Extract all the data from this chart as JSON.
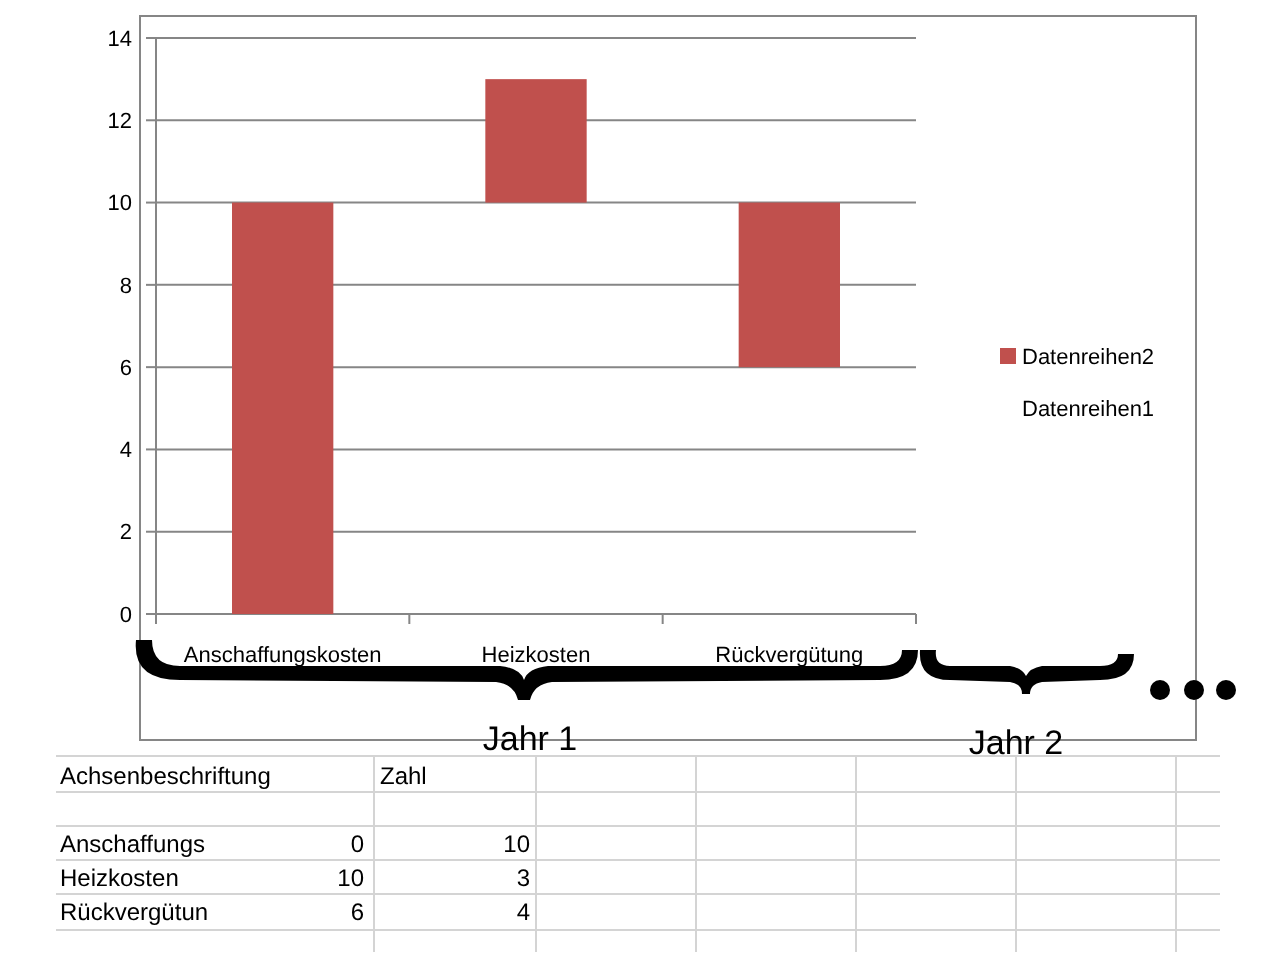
{
  "chart_data": {
    "type": "bar",
    "categories": [
      "Anschaffungskosten",
      "Heizkosten",
      "Rückvergütung"
    ],
    "series": [
      {
        "name": "Datenreihen2",
        "color": "#c0504d",
        "values": [
          10,
          3,
          4
        ],
        "base": [
          0,
          10,
          6
        ]
      },
      {
        "name": "Datenreihen1",
        "values": [
          null,
          null,
          null
        ]
      }
    ],
    "ylim": [
      0,
      14
    ],
    "yticks": [
      0,
      2,
      4,
      6,
      8,
      10,
      12,
      14
    ],
    "grid": "y",
    "legend": "right",
    "annotations": [
      "Jahr 1",
      "Jahr 2",
      "Achsenbeschriftung",
      "Zahl",
      "Anschaffungs",
      "0",
      "10",
      "Heizkosten",
      "10",
      "3",
      "Rückvergütun",
      "6",
      "4"
    ]
  }
}
